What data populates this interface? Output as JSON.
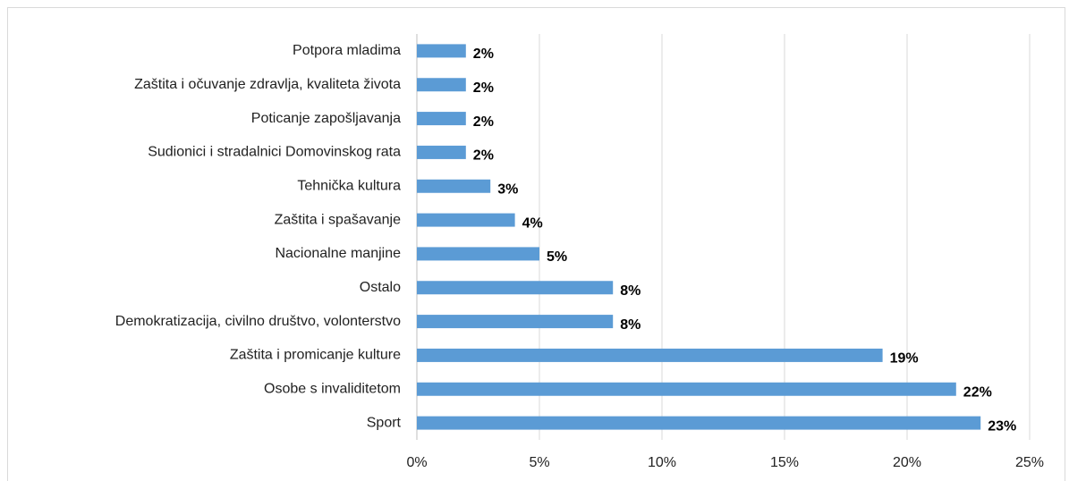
{
  "chart_data": {
    "type": "bar",
    "orientation": "horizontal",
    "categories": [
      "Potpora mladima",
      "Zaštita i očuvanje zdravlja, kvaliteta života",
      "Poticanje zapošljavanja",
      "Sudionici i stradalnici Domovinskog rata",
      "Tehnička kultura",
      "Zaštita i spašavanje",
      "Nacionalne manjine",
      "Ostalo",
      "Demokratizacija, civilno društvo, volonterstvo",
      "Zaštita i promicanje kulture",
      "Osobe s invaliditetom",
      "Sport"
    ],
    "values": [
      2,
      2,
      2,
      2,
      3,
      4,
      5,
      8,
      8,
      19,
      22,
      23
    ],
    "value_labels": [
      "2%",
      "2%",
      "2%",
      "2%",
      "3%",
      "4%",
      "5%",
      "8%",
      "8%",
      "19%",
      "22%",
      "23%"
    ],
    "color": "#5b9bd5",
    "xlim": [
      0,
      25
    ],
    "xticks": [
      {
        "value": 0,
        "label": "0%"
      },
      {
        "value": 5,
        "label": "5%"
      },
      {
        "value": 10,
        "label": "10%"
      },
      {
        "value": 15,
        "label": "15%"
      },
      {
        "value": 20,
        "label": "20%"
      },
      {
        "value": 25,
        "label": "25%"
      }
    ],
    "grid": true
  }
}
